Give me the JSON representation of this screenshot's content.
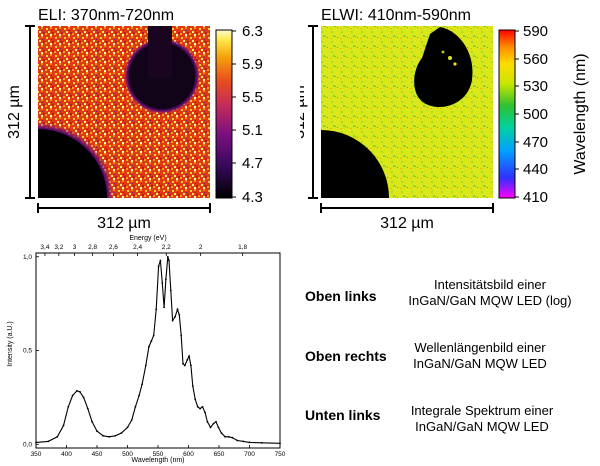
{
  "chart_data": [
    {
      "type": "heatmap",
      "title": "ELI: 370nm-720nm",
      "xlabel": "312 µm",
      "ylabel": "312 µm",
      "colorbar": {
        "ticks": [
          "6.3",
          "5.9",
          "5.5",
          "5.1",
          "4.7",
          "4.3"
        ],
        "range": [
          4.3,
          6.3
        ],
        "colors": [
          "#000000",
          "#3a0a5e",
          "#7a1080",
          "#c42a5a",
          "#e8501e",
          "#f6a20c",
          "#ffe84a",
          "#fffbd0"
        ]
      }
    },
    {
      "type": "heatmap",
      "title": "ELWI: 410nm-590nm",
      "xlabel": "312 µm",
      "ylabel": "312 µm",
      "colorbar": {
        "label": "Wavelength (nm)",
        "ticks": [
          "590",
          "560",
          "530",
          "500",
          "470",
          "440",
          "410"
        ],
        "range": [
          410,
          590
        ],
        "colors": [
          "#ff00ff",
          "#3030ff",
          "#00a0ff",
          "#00d2a0",
          "#30c030",
          "#c8e600",
          "#ffdc00",
          "#ff8c00",
          "#ff0000"
        ]
      }
    },
    {
      "type": "line",
      "xlabel": "Wavelength (nm)",
      "ylabel": "Intensity (a.U.)",
      "top_axis_label": "Energy (eV)",
      "xlim": [
        350,
        750
      ],
      "ylim": [
        -0.02,
        1.02
      ],
      "x_ticks": [
        "350",
        "400",
        "450",
        "500",
        "550",
        "600",
        "650",
        "700",
        "750"
      ],
      "y_ticks": [
        "0,0",
        "0,5",
        "1,0"
      ],
      "energy_ticks": [
        {
          "label": "3,4",
          "ev": 3.4
        },
        {
          "label": "3,2",
          "ev": 3.2
        },
        {
          "label": "3",
          "ev": 3.0
        },
        {
          "label": "2,8",
          "ev": 2.8
        },
        {
          "label": "2,6",
          "ev": 2.6
        },
        {
          "label": "2,4",
          "ev": 2.4
        },
        {
          "label": "2,2",
          "ev": 2.2
        },
        {
          "label": "2",
          "ev": 2.0
        },
        {
          "label": "1,8",
          "ev": 1.8
        }
      ],
      "series": [
        {
          "values": [
            [
              350,
              0.01
            ],
            [
              370,
              0.015
            ],
            [
              385,
              0.04
            ],
            [
              395,
              0.1
            ],
            [
              403,
              0.2
            ],
            [
              410,
              0.26
            ],
            [
              417,
              0.285
            ],
            [
              422,
              0.28
            ],
            [
              428,
              0.25
            ],
            [
              435,
              0.19
            ],
            [
              442,
              0.12
            ],
            [
              450,
              0.07
            ],
            [
              460,
              0.045
            ],
            [
              470,
              0.04
            ],
            [
              480,
              0.045
            ],
            [
              490,
              0.06
            ],
            [
              500,
              0.09
            ],
            [
              507,
              0.13
            ],
            [
              513,
              0.2
            ],
            [
              519,
              0.26
            ],
            [
              524,
              0.32
            ],
            [
              530,
              0.42
            ],
            [
              535,
              0.52
            ],
            [
              539,
              0.55
            ],
            [
              543,
              0.58
            ],
            [
              547,
              0.72
            ],
            [
              551,
              0.95
            ],
            [
              554,
              0.98
            ],
            [
              557,
              0.86
            ],
            [
              560,
              0.73
            ],
            [
              563,
              0.88
            ],
            [
              566,
              1.0
            ],
            [
              568,
              0.98
            ],
            [
              571,
              0.82
            ],
            [
              574,
              0.66
            ],
            [
              578,
              0.68
            ],
            [
              582,
              0.72
            ],
            [
              585,
              0.69
            ],
            [
              588,
              0.58
            ],
            [
              591,
              0.43
            ],
            [
              594,
              0.42
            ],
            [
              598,
              0.45
            ],
            [
              601,
              0.47
            ],
            [
              604,
              0.42
            ],
            [
              607,
              0.31
            ],
            [
              611,
              0.24
            ],
            [
              615,
              0.2
            ],
            [
              619,
              0.19
            ],
            [
              623,
              0.2
            ],
            [
              627,
              0.17
            ],
            [
              631,
              0.12
            ],
            [
              636,
              0.09
            ],
            [
              641,
              0.11
            ],
            [
              645,
              0.12
            ],
            [
              649,
              0.09
            ],
            [
              654,
              0.06
            ],
            [
              660,
              0.04
            ],
            [
              666,
              0.04
            ],
            [
              672,
              0.035
            ],
            [
              680,
              0.02
            ],
            [
              690,
              0.015
            ],
            [
              700,
              0.01
            ],
            [
              720,
              0.008
            ],
            [
              750,
              0.005
            ]
          ]
        }
      ]
    }
  ],
  "captions": [
    {
      "key": "Oben links",
      "desc_line1": "Intensitätsbild einer",
      "desc_line2": "InGaN/GaN MQW LED (log)"
    },
    {
      "key": "Oben rechts",
      "desc_line1": "Wellenlängenbild einer",
      "desc_line2": "InGaN/GaN MQW LED"
    },
    {
      "key": "Unten links",
      "desc_line1": "Integrale Spektrum einer",
      "desc_line2": "InGaN/GaN MQW LED"
    }
  ]
}
